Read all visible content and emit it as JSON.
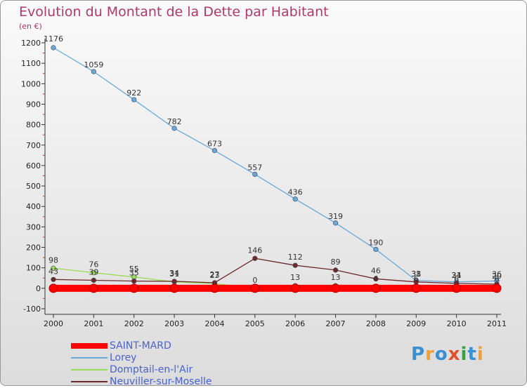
{
  "title": "Evolution du Montant de la Dette par Habitant",
  "unit_label": "(en €)",
  "brand": {
    "letters": [
      "P",
      "r",
      "o",
      "x",
      "i",
      "t",
      "i"
    ],
    "colors": [
      "#3a8fd0",
      "#f0a030",
      "#3a8fd0",
      "#e05028",
      "#3aa040",
      "#3a8fd0",
      "#f0a030"
    ]
  },
  "chart_data": {
    "type": "line",
    "title": "Evolution du Montant de la Dette par Habitant",
    "ylabel": "(en €)",
    "x": [
      "2000",
      "2001",
      "2002",
      "2003",
      "2004",
      "2005",
      "2006",
      "2007",
      "2008",
      "2009",
      "2010",
      "2011"
    ],
    "ylim": [
      -100,
      1200
    ],
    "yticks": [
      "-100",
      "0",
      "100",
      "200",
      "300",
      "400",
      "500",
      "600",
      "700",
      "800",
      "900",
      "1000",
      "1100",
      "1200"
    ],
    "grid": false,
    "legend_position": "bottom-left",
    "series": [
      {
        "name": "SAINT-MARD",
        "color": "#ff0000",
        "values": [
          0,
          0,
          0,
          0,
          0,
          0,
          0,
          0,
          0,
          0,
          0,
          0
        ],
        "labels": [
          "",
          "",
          "",
          "",
          "",
          "",
          "",
          "",
          "",
          "",
          "",
          ""
        ]
      },
      {
        "name": "Lorey",
        "color": "#6aa8d8",
        "values": [
          1176,
          1059,
          922,
          782,
          673,
          557,
          436,
          319,
          190,
          38,
          31,
          36
        ],
        "labels": [
          "1176",
          "1059",
          "922",
          "782",
          "673",
          "557",
          "436",
          "319",
          "190",
          "38",
          "31",
          "36"
        ]
      },
      {
        "name": "Domptail-en-l'Air",
        "color": "#99dd55",
        "values": [
          98,
          76,
          55,
          31,
          23,
          0,
          13,
          13,
          6,
          6,
          6,
          6
        ],
        "labels": [
          "98",
          "76",
          "55",
          "31",
          "23",
          "0",
          "13",
          "13",
          "6",
          "6",
          "6",
          "6"
        ]
      },
      {
        "name": "Neuviller-sur-Moselle",
        "color": "#6b2a2a",
        "values": [
          43,
          39,
          35,
          34,
          27,
          146,
          112,
          89,
          46,
          31,
          24,
          20
        ],
        "labels": [
          "43",
          "39",
          "35",
          "34",
          "27",
          "146",
          "112",
          "89",
          "46",
          "31",
          "24",
          "20"
        ]
      }
    ]
  }
}
